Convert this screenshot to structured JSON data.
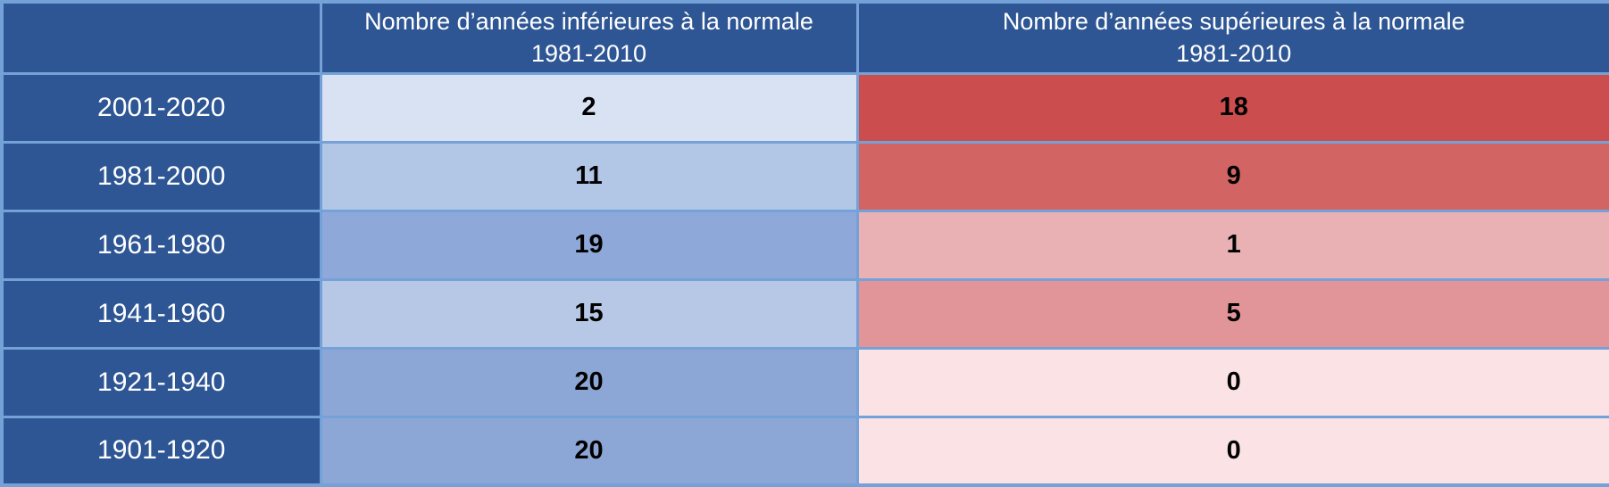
{
  "table": {
    "columns": [
      {
        "label": "",
        "sublabel": ""
      },
      {
        "label": "Nombre d’années inférieures à la normale",
        "sublabel": "1981-2010"
      },
      {
        "label": "Nombre d’années supérieures à la normale",
        "sublabel": "1981-2010"
      }
    ],
    "rows": [
      {
        "period": "2001-2020",
        "below": "2",
        "below_color": "#d9e2f3",
        "above": "18",
        "above_color": "#cb4d4d"
      },
      {
        "period": "1981-2000",
        "below": "11",
        "below_color": "#b2c6e6",
        "above": "9",
        "above_color": "#d26464"
      },
      {
        "period": "1961-1980",
        "below": "19",
        "below_color": "#8ea9d9",
        "above": "1",
        "above_color": "#eab1b5"
      },
      {
        "period": "1941-1960",
        "below": "15",
        "below_color": "#b6c8e5",
        "above": "5",
        "above_color": "#e29598"
      },
      {
        "period": "1921-1940",
        "below": "20",
        "below_color": "#8ca7d6",
        "above": "0",
        "above_color": "#fbe2e5"
      },
      {
        "period": "1901-1920",
        "below": "20",
        "below_color": "#8ca7d6",
        "above": "0",
        "above_color": "#fbe2e5"
      }
    ],
    "colors": {
      "header_bg": "#2e5694",
      "header_text": "#ffffff",
      "grid": "#74a2d8",
      "value_text": "#000000"
    }
  },
  "chart_data": {
    "type": "table",
    "columns": [
      "",
      "Nombre d’années inférieures à la normale 1981-2010",
      "Nombre d’années supérieures à la normale 1981-2010"
    ],
    "rows": [
      [
        "2001-2020",
        2,
        18
      ],
      [
        "1981-2000",
        11,
        9
      ],
      [
        "1961-1980",
        19,
        1
      ],
      [
        "1941-1960",
        15,
        5
      ],
      [
        "1921-1940",
        20,
        0
      ],
      [
        "1901-1920",
        20,
        0
      ]
    ]
  }
}
